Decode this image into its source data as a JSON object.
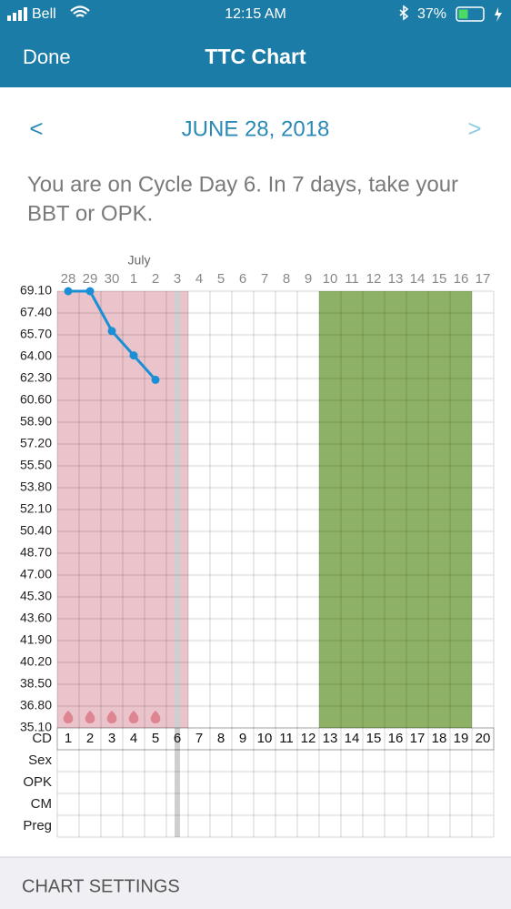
{
  "status_bar": {
    "carrier": "Bell",
    "time": "12:15 AM",
    "battery": "37%"
  },
  "nav": {
    "left": "Done",
    "title": "TTC Chart"
  },
  "date_nav": {
    "prev": "<",
    "date": "JUNE 28, 2018",
    "next": ">"
  },
  "message": {
    "lines": [
      "You are on Cycle Day 6. In 7 days, take your",
      "BBT or OPK."
    ]
  },
  "chart_data": {
    "type": "line",
    "month_label": "July",
    "categories": [
      28,
      29,
      30,
      1,
      2,
      3,
      4,
      5,
      6,
      7,
      8,
      9,
      10,
      11,
      12,
      13,
      14,
      15,
      16,
      17
    ],
    "cycle_days": [
      1,
      2,
      3,
      4,
      5,
      6,
      7,
      8,
      9,
      10,
      11,
      12,
      13,
      14,
      15,
      16,
      17,
      18,
      19,
      20
    ],
    "row_labels": [
      "CD",
      "Sex",
      "OPK",
      "CM",
      "Preg"
    ],
    "series": [
      {
        "color": "#1a8fd6",
        "values": [
          69.1,
          69.1,
          66.0,
          64.1,
          62.2,
          null,
          null,
          null,
          null,
          null,
          null,
          null,
          null,
          null,
          null,
          null,
          null,
          null,
          null,
          null
        ]
      }
    ],
    "ylim": [
      35.1,
      69.1
    ],
    "yticks": [
      {
        "value": 69.1,
        "label": "69.10"
      },
      {
        "value": 67.4,
        "label": "67.40"
      },
      {
        "value": 65.7,
        "label": "65.70"
      },
      {
        "value": 64.0,
        "label": "64.00"
      },
      {
        "value": 62.3,
        "label": "62.30"
      },
      {
        "value": 60.6,
        "label": "60.60"
      },
      {
        "value": 58.9,
        "label": "58.90"
      },
      {
        "value": 57.2,
        "label": "57.20"
      },
      {
        "value": 55.5,
        "label": "55.50"
      },
      {
        "value": 53.8,
        "label": "53.80"
      },
      {
        "value": 52.1,
        "label": "52.10"
      },
      {
        "value": 50.4,
        "label": "50.40"
      },
      {
        "value": 48.7,
        "label": "48.70"
      },
      {
        "value": 47.0,
        "label": "47.00"
      },
      {
        "value": 45.3,
        "label": "45.30"
      },
      {
        "value": 43.6,
        "label": "43.60"
      },
      {
        "value": 41.9,
        "label": "41.90"
      },
      {
        "value": 40.2,
        "label": "40.20"
      },
      {
        "value": 38.5,
        "label": "38.50"
      },
      {
        "value": 36.8,
        "label": "36.80"
      },
      {
        "value": 35.1,
        "label": "35.10"
      }
    ],
    "shaded_ranges": [
      {
        "start": 1,
        "end": 6,
        "color": "#ebc3cb"
      },
      {
        "start": 13,
        "end": 19,
        "color": "#8db266"
      }
    ],
    "current_day": 6,
    "period_days": [
      1,
      2,
      3,
      4,
      5
    ]
  },
  "footer": {
    "label": "CHART SETTINGS"
  }
}
